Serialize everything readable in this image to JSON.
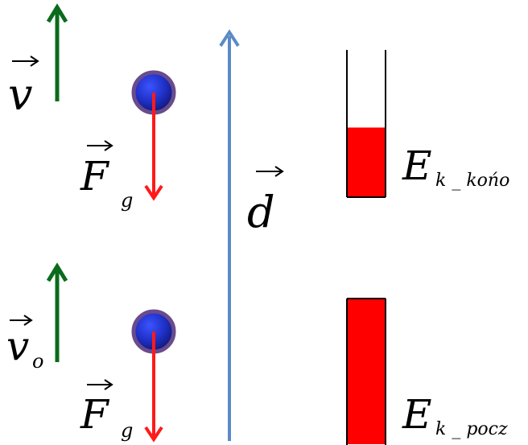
{
  "symbols": {
    "v_top": "v",
    "v_bottom": "v",
    "v_bottom_sub": "o",
    "f_top": "F",
    "f_top_sub": "g",
    "f_bottom": "F",
    "f_bottom_sub": "g",
    "d": "d",
    "ek_final": "E",
    "ek_final_sub": "k _ końo",
    "ek_initial": "E",
    "ek_initial_sub": "k _ pocz"
  },
  "bars": {
    "final_fill_fraction": 0.47,
    "initial_fill_fraction": 1.0
  },
  "colors": {
    "velocity_arrow": "#0b6b1c",
    "gravity_arrow": "#ff1a1a",
    "displacement_arrow": "#5b8ac6",
    "ball_fill": "#1f2fc4",
    "ball_stroke": "#6a4b8c",
    "energy_bar": "#ff0000"
  }
}
